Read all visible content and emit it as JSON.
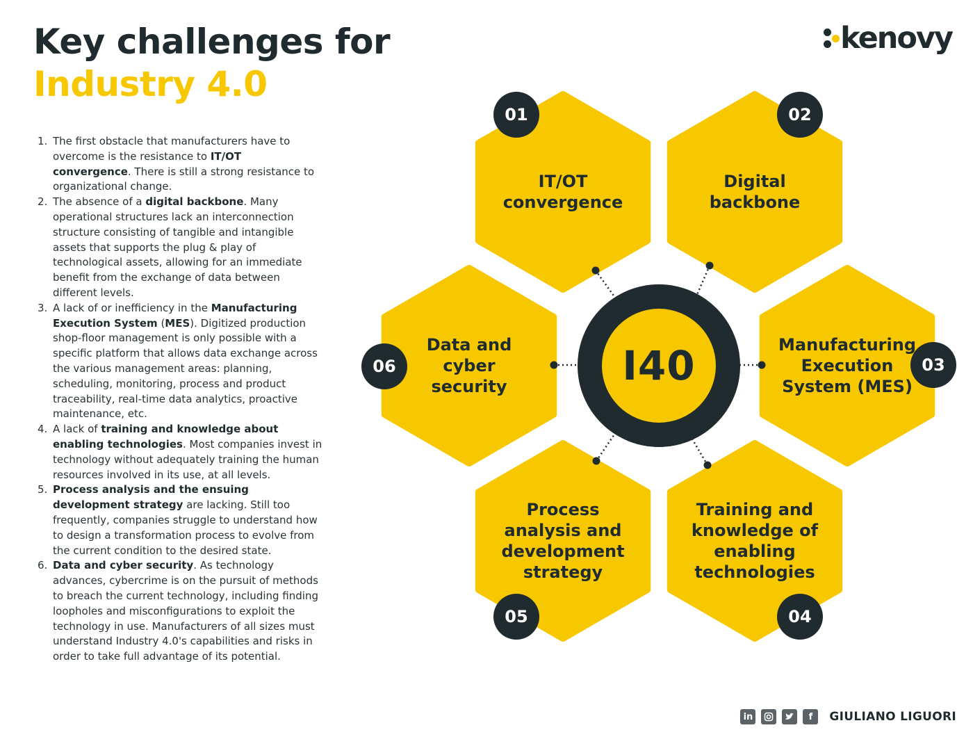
{
  "title": {
    "line1": "Key challenges for",
    "line2": "Industry 4.0"
  },
  "logo": {
    "text": "kenovy"
  },
  "colors": {
    "accent": "#f7c800",
    "dark": "#1f2b2e",
    "text": "#2a3336",
    "background": "#ffffff"
  },
  "challenges": [
    {
      "num": "1.",
      "segments": [
        {
          "t": "The first obstacle that manufacturers have to overcome is the resistance to "
        },
        {
          "t": "IT/OT convergence",
          "b": true
        },
        {
          "t": ". There is still a strong resistance to organizational change."
        }
      ]
    },
    {
      "num": "2.",
      "segments": [
        {
          "t": "The absence of a "
        },
        {
          "t": "digital backbone",
          "b": true
        },
        {
          "t": ". Many operational structures lack an interconnection structure consisting of tangible and intangible assets that supports the plug & play of technological assets, allowing for an immediate benefit from the exchange of data between different levels."
        }
      ]
    },
    {
      "num": "3.",
      "segments": [
        {
          "t": "A lack of or inefficiency in the "
        },
        {
          "t": "Manufacturing Execution System",
          "b": true
        },
        {
          "t": " ("
        },
        {
          "t": "MES",
          "b": true
        },
        {
          "t": "). Digitized production shop-floor management is only possible with a specific platform that allows data exchange across the various management areas: planning, scheduling, monitoring, process and product traceability, real-time data analytics, proactive maintenance, etc."
        }
      ]
    },
    {
      "num": "4.",
      "segments": [
        {
          "t": "A lack of "
        },
        {
          "t": "training and knowledge about enabling technologies",
          "b": true
        },
        {
          "t": ". Most companies invest in technology without adequately training the human resources involved in its use, at all levels."
        }
      ]
    },
    {
      "num": "5.",
      "segments": [
        {
          "t": "Process analysis and the ensuing development strategy",
          "b": true
        },
        {
          "t": " are lacking. Still too frequently, companies struggle to understand how to design a transformation process to evolve from the current condition to the desired state."
        }
      ]
    },
    {
      "num": "6.",
      "segments": [
        {
          "t": "Data and cyber security",
          "b": true
        },
        {
          "t": ". As technology advances, cybercrime is on the pursuit of methods to breach the current technology, including finding loopholes and misconfigurations to exploit the technology in use. Manufacturers of all sizes must understand Industry 4.0's capabilities and risks in order to take full advantage of its potential."
        }
      ]
    }
  ],
  "diagram": {
    "center_label": "I40",
    "hexes": [
      {
        "num": "01",
        "lines": [
          "IT/OT",
          "convergence"
        ]
      },
      {
        "num": "02",
        "lines": [
          "Digital",
          "backbone"
        ]
      },
      {
        "num": "03",
        "lines": [
          "Manufacturing",
          "Execution",
          "System (MES)"
        ]
      },
      {
        "num": "04",
        "lines": [
          "Training and",
          "knowledge of",
          "enabling",
          "technologies"
        ]
      },
      {
        "num": "05",
        "lines": [
          "Process",
          "analysis and",
          "development",
          "strategy"
        ]
      },
      {
        "num": "06",
        "lines": [
          "Data and",
          "cyber",
          "security"
        ]
      }
    ]
  },
  "footer": {
    "social_icons": [
      "linkedin-icon",
      "instagram-icon",
      "twitter-icon",
      "facebook-icon"
    ],
    "author": "GIULIANO LIGUORI"
  }
}
